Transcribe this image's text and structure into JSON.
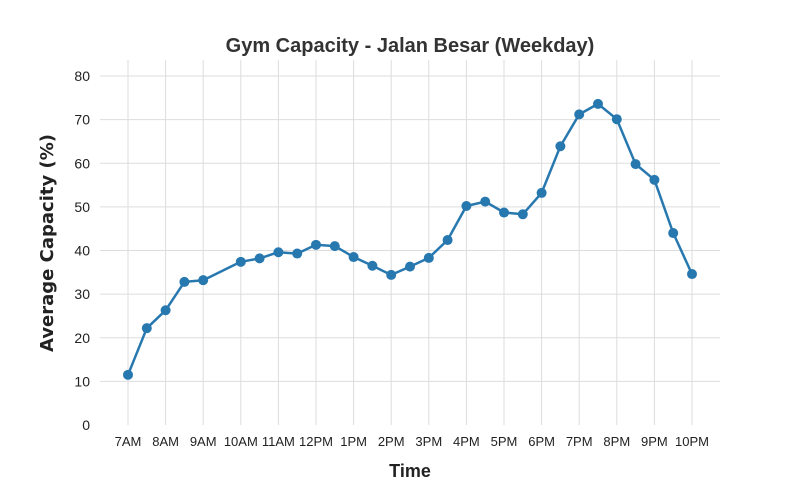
{
  "chart_data": {
    "type": "line",
    "title": "Gym Capacity - Jalan Besar (Weekday)",
    "xlabel": "Time",
    "ylabel": "Average Capacity (%)",
    "ylim": [
      0,
      80
    ],
    "yticks": [
      0,
      10,
      20,
      30,
      40,
      50,
      60,
      70,
      80
    ],
    "xlim": [
      7,
      22
    ],
    "xticks": [
      {
        "value": 7,
        "label": "7AM"
      },
      {
        "value": 8,
        "label": "8AM"
      },
      {
        "value": 9,
        "label": "9AM"
      },
      {
        "value": 10,
        "label": "10AM"
      },
      {
        "value": 11,
        "label": "11AM"
      },
      {
        "value": 12,
        "label": "12PM"
      },
      {
        "value": 13,
        "label": "1PM"
      },
      {
        "value": 14,
        "label": "2PM"
      },
      {
        "value": 15,
        "label": "3PM"
      },
      {
        "value": 16,
        "label": "4PM"
      },
      {
        "value": 17,
        "label": "5PM"
      },
      {
        "value": 18,
        "label": "6PM"
      },
      {
        "value": 19,
        "label": "7PM"
      },
      {
        "value": 20,
        "label": "8PM"
      },
      {
        "value": 21,
        "label": "9PM"
      },
      {
        "value": 22,
        "label": "10PM"
      }
    ],
    "grid": true,
    "colors": {
      "line": "#2878b0",
      "grid": "#dddddd",
      "text": "#222222",
      "title": "#333333"
    },
    "series": [
      {
        "x": [
          7,
          7.5,
          8,
          8.5,
          9,
          10,
          10.5,
          11,
          11.5,
          12,
          12.5,
          13,
          13.5,
          14,
          14.5,
          15,
          15.5,
          16,
          16.5,
          17,
          17.5,
          18,
          18.5,
          19,
          19.5,
          20,
          20.5,
          21,
          21.5,
          22
        ],
        "values": [
          11.5,
          22.2,
          26.3,
          32.8,
          33.2,
          37.4,
          38.2,
          39.6,
          39.3,
          41.3,
          41.0,
          38.5,
          36.5,
          34.4,
          36.3,
          38.3,
          42.4,
          50.2,
          51.2,
          48.7,
          48.3,
          53.2,
          63.9,
          71.2,
          73.6,
          70.1,
          59.8,
          56.2,
          44.0,
          34.6
        ]
      }
    ]
  }
}
